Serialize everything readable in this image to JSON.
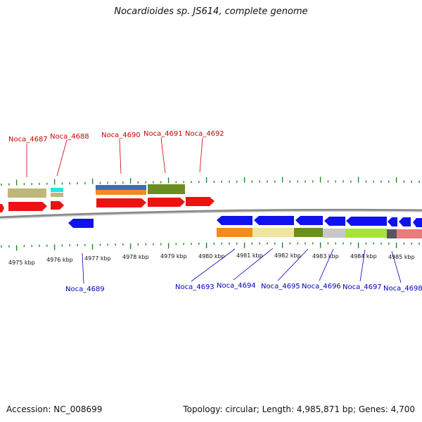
{
  "title": "Nocardioides sp. JS614, complete genome",
  "footer": {
    "accession": "Accession: NC_008699",
    "topology": "Topology: circular; Length: 4,985,871 bp; Genes: 4,700"
  },
  "colors": {
    "forward_gene": "#ee1111",
    "reverse_gene": "#1111ee",
    "forward_label": "#cc0000",
    "reverse_label": "#0000bb",
    "backbone": "#888888",
    "tick": "#228822"
  },
  "ticks": [
    "4975 kbp",
    "4976 kbp",
    "4977 kbp",
    "4978 kbp",
    "4979 kbp",
    "4980 kbp",
    "4981 kbp",
    "4982 kbp",
    "4983 kbp",
    "4984 kbp",
    "4985 kbp"
  ],
  "forward_labels": [
    "Noca_4687",
    "Noca_4688",
    "Noca_4690",
    "Noca_4691",
    "Noca_4692"
  ],
  "reverse_labels": [
    "Noca_4689",
    "Noca_4693",
    "Noca_4694",
    "Noca_4695",
    "Noca_4696",
    "Noca_4697",
    "Noca_4698"
  ]
}
